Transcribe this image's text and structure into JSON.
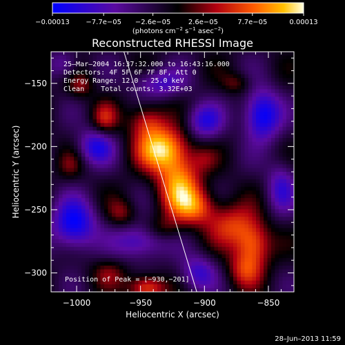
{
  "chart_data": {
    "type": "heatmap",
    "title": "Reconstructed RHESSI Image",
    "xlabel": "Heliocentric X (arcsec)",
    "ylabel": "Heliocentric Y (arcsec)",
    "xlim": [
      -1020,
      -830
    ],
    "ylim": [
      -315,
      -125
    ],
    "x_ticks": [
      {
        "v": -1000,
        "label": "−1000"
      },
      {
        "v": -950,
        "label": "−950"
      },
      {
        "v": -900,
        "label": "−900"
      },
      {
        "v": -850,
        "label": "−850"
      }
    ],
    "y_ticks": [
      {
        "v": -150,
        "label": "−150"
      },
      {
        "v": -200,
        "label": "−200"
      },
      {
        "v": -250,
        "label": "−250"
      },
      {
        "v": -300,
        "label": "−300"
      }
    ],
    "colorbar": {
      "min": -0.00013,
      "max": 0.00013,
      "ticks": [
        {
          "v": -0.00013,
          "label": "−0.00013"
        },
        {
          "v": -7.7e-05,
          "label": "−7.7e−05"
        },
        {
          "v": -2.6e-05,
          "label": "−2.6e−05"
        },
        {
          "v": 2.6e-05,
          "label": "2.6e−05"
        },
        {
          "v": 7.7e-05,
          "label": "7.7e−05"
        },
        {
          "v": 0.00013,
          "label": "0.00013"
        }
      ],
      "unit_main": "(photons cm",
      "unit_sup1": "−2",
      "unit_mid": " s",
      "unit_sup2": "−1",
      "unit_mid2": " asec",
      "unit_sup3": "−2",
      "unit_end": ")"
    },
    "annotations": [
      "25–Mar–2004 16:37:32.000 to 16:43:16.000",
      "Detectors: 4F 5F 6F 7F 8F, Att 0",
      "Energy Range: 12.0 – 25.0 keV",
      "Clean    Total counts: 3.32E+03"
    ],
    "peak_label": "Position of Peak = [−930,−201]",
    "peak": [
      -930,
      -201
    ],
    "limb_line": [
      [
        -963,
        -125
      ],
      [
        -906,
        -315
      ]
    ],
    "sources": [
      {
        "x": -933,
        "y": -202,
        "amp": 1.0,
        "sx": 14,
        "sy": 12
      },
      {
        "x": -920,
        "y": -230,
        "amp": 0.85,
        "sx": 12,
        "sy": 16
      },
      {
        "x": -945,
        "y": -180,
        "amp": 0.55,
        "sx": 10,
        "sy": 10
      },
      {
        "x": -907,
        "y": -248,
        "amp": 0.6,
        "sx": 12,
        "sy": 10
      },
      {
        "x": -878,
        "y": -262,
        "amp": 0.55,
        "sx": 14,
        "sy": 12
      },
      {
        "x": -862,
        "y": -278,
        "amp": 0.7,
        "sx": 10,
        "sy": 12
      },
      {
        "x": -868,
        "y": -298,
        "amp": 0.5,
        "sx": 10,
        "sy": 10
      },
      {
        "x": -978,
        "y": -178,
        "amp": 0.45,
        "sx": 7,
        "sy": 9
      },
      {
        "x": -997,
        "y": -152,
        "amp": 0.35,
        "sx": 7,
        "sy": 7
      },
      {
        "x": -965,
        "y": -253,
        "amp": 0.35,
        "sx": 8,
        "sy": 8
      },
      {
        "x": -932,
        "y": -265,
        "amp": 0.3,
        "sx": 10,
        "sy": 7
      },
      {
        "x": -975,
        "y": -300,
        "amp": 0.3,
        "sx": 10,
        "sy": 8
      },
      {
        "x": -945,
        "y": -312,
        "amp": 0.75,
        "sx": 10,
        "sy": 7
      },
      {
        "x": -875,
        "y": -150,
        "amp": 0.3,
        "sx": 8,
        "sy": 6
      },
      {
        "x": -1005,
        "y": -215,
        "amp": 0.25,
        "sx": 7,
        "sy": 8
      },
      {
        "x": -900,
        "y": -210,
        "amp": 0.2,
        "sx": 7,
        "sy": 7
      }
    ],
    "negatives": [
      {
        "x": -855,
        "y": -175,
        "amp": 0.9,
        "sx": 10,
        "sy": 14
      },
      {
        "x": -1002,
        "y": -262,
        "amp": 0.85,
        "sx": 12,
        "sy": 14
      },
      {
        "x": -985,
        "y": -200,
        "amp": 0.65,
        "sx": 10,
        "sy": 10
      },
      {
        "x": -900,
        "y": -180,
        "amp": 0.6,
        "sx": 10,
        "sy": 10
      },
      {
        "x": -950,
        "y": -275,
        "amp": 0.6,
        "sx": 14,
        "sy": 10
      },
      {
        "x": -840,
        "y": -232,
        "amp": 0.5,
        "sx": 8,
        "sy": 14
      },
      {
        "x": -1010,
        "y": -135,
        "amp": 0.4,
        "sx": 8,
        "sy": 8
      },
      {
        "x": -935,
        "y": -150,
        "amp": 0.5,
        "sx": 14,
        "sy": 8
      },
      {
        "x": -905,
        "y": -300,
        "amp": 0.55,
        "sx": 10,
        "sy": 10
      }
    ]
  },
  "footer": {
    "date": "28–Jun–2013 11:59"
  }
}
